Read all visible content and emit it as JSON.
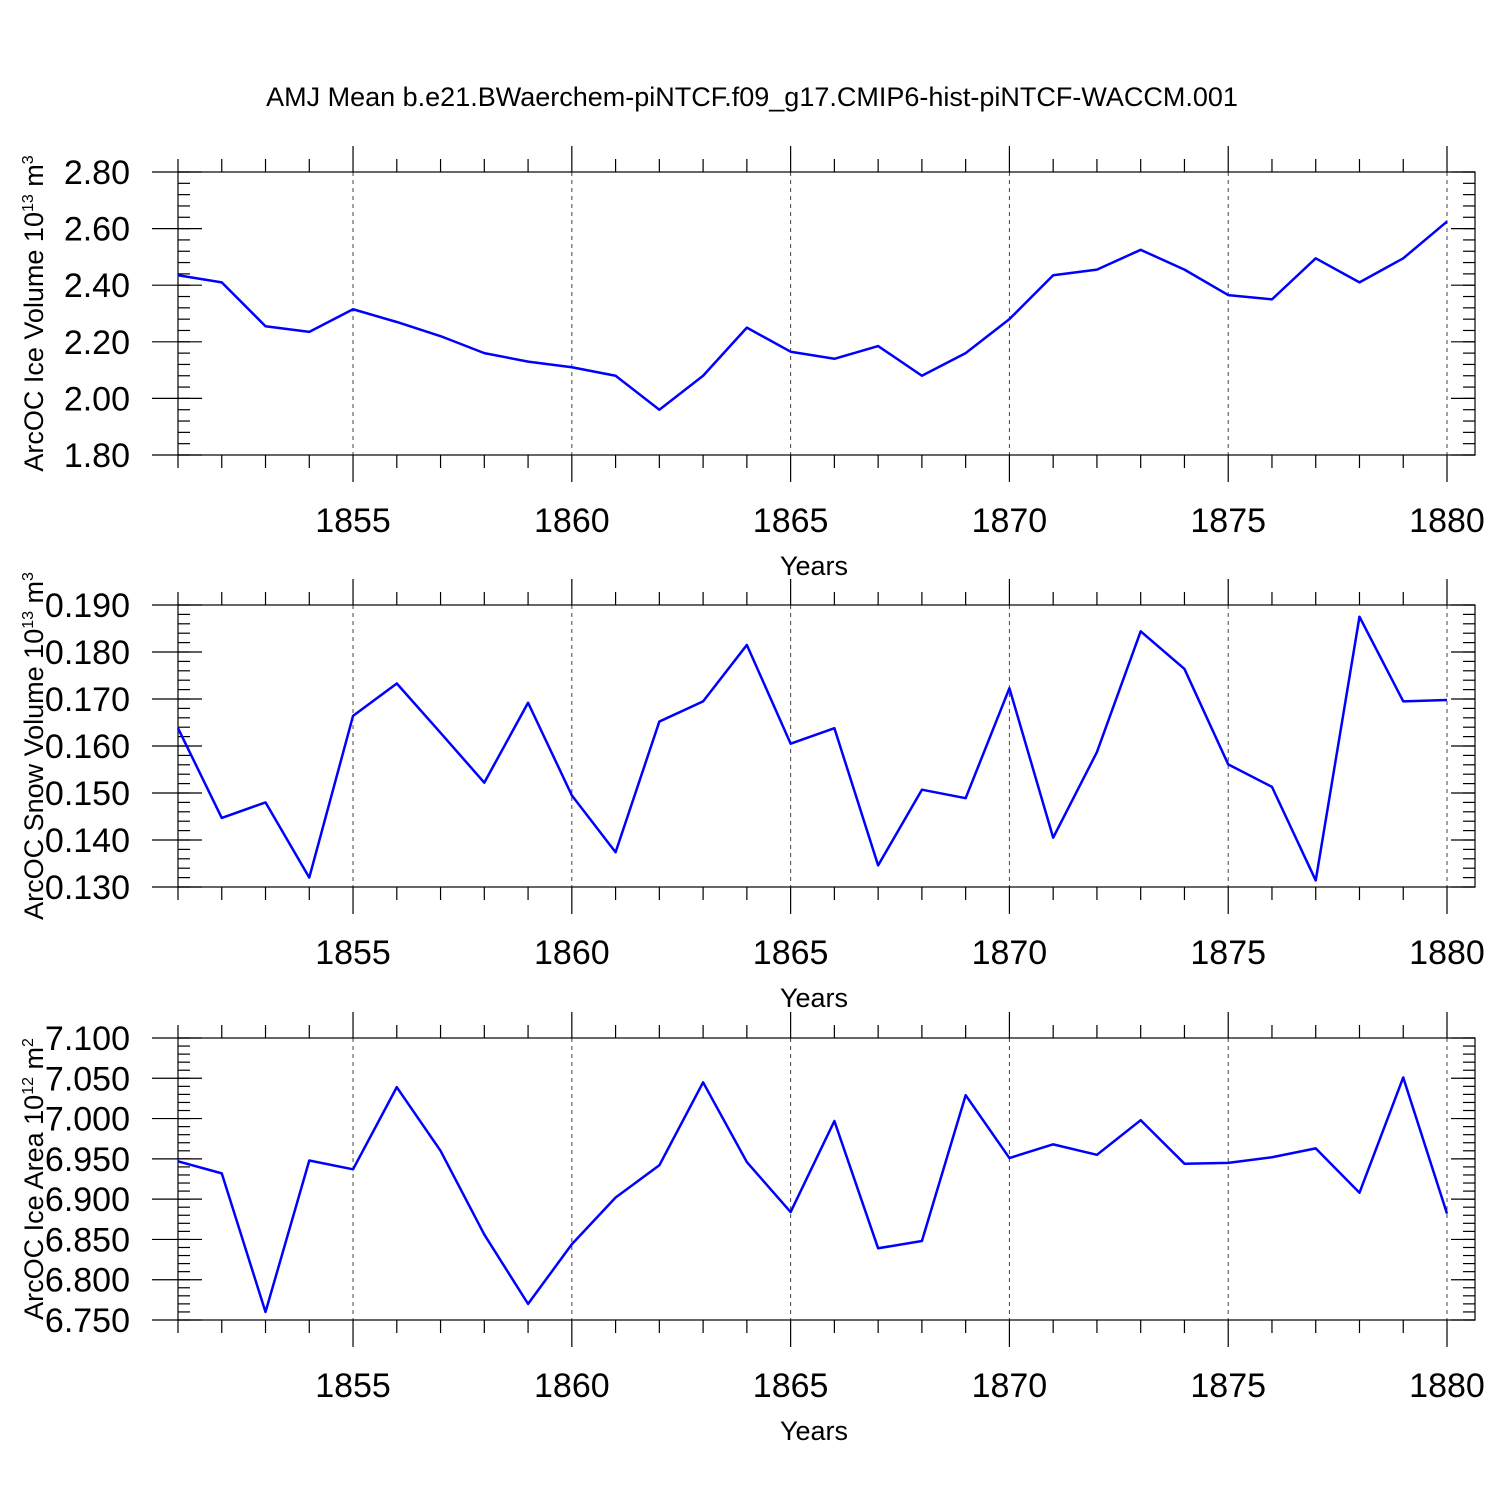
{
  "figure": {
    "title": "AMJ Mean b.e21.BWaerchem-piNTCF.f09_g17.CMIP6-hist-piNTCF-WACCM.001"
  },
  "colors": {
    "series": "#0000ff",
    "axes": "#000000",
    "grid": "#444444"
  },
  "chart_data": [
    {
      "type": "line",
      "ylabel": {
        "text": "ArcOC Ice Volume 10",
        "exp": "13",
        "unit": " m",
        "unit_exp": "3"
      },
      "xlabel": "Years",
      "xlim": [
        1851,
        1880
      ],
      "ylim": [
        1.8,
        2.8
      ],
      "xticks": [
        1855,
        1860,
        1865,
        1870,
        1875,
        1880
      ],
      "xtick_labels": [
        "1855",
        "1860",
        "1865",
        "1870",
        "1875",
        "1880"
      ],
      "yticks": [
        1.8,
        2.0,
        2.2,
        2.4,
        2.6,
        2.8
      ],
      "ytick_labels": [
        "1.80",
        "2.00",
        "2.20",
        "2.40",
        "2.60",
        "2.80"
      ],
      "y_minor_step": 0.04,
      "grid": "vertical dashed at major x ticks",
      "x": [
        1851,
        1852,
        1853,
        1854,
        1855,
        1856,
        1857,
        1858,
        1859,
        1860,
        1861,
        1862,
        1863,
        1864,
        1865,
        1866,
        1867,
        1868,
        1869,
        1870,
        1871,
        1872,
        1873,
        1874,
        1875,
        1876,
        1877,
        1878,
        1879,
        1880
      ],
      "y": [
        2.435,
        2.41,
        2.255,
        2.235,
        2.315,
        2.27,
        2.22,
        2.16,
        2.13,
        2.11,
        2.08,
        1.96,
        2.08,
        2.25,
        2.165,
        2.14,
        2.185,
        2.08,
        2.16,
        2.28,
        2.435,
        2.455,
        2.525,
        2.455,
        2.365,
        2.35,
        2.495,
        2.41,
        2.495,
        2.625
      ]
    },
    {
      "type": "line",
      "ylabel": {
        "text": "ArcOC Snow Volume 10",
        "exp": "13",
        "unit": " m",
        "unit_exp": "3"
      },
      "xlabel": "Years",
      "xlim": [
        1851,
        1880
      ],
      "ylim": [
        0.13,
        0.19
      ],
      "xticks": [
        1855,
        1860,
        1865,
        1870,
        1875,
        1880
      ],
      "xtick_labels": [
        "1855",
        "1860",
        "1865",
        "1870",
        "1875",
        "1880"
      ],
      "yticks": [
        0.13,
        0.14,
        0.15,
        0.16,
        0.17,
        0.18,
        0.19
      ],
      "ytick_labels": [
        "0.130",
        "0.140",
        "0.150",
        "0.160",
        "0.170",
        "0.180",
        "0.190"
      ],
      "y_minor_step": 0.002,
      "grid": "vertical dashed at major x ticks",
      "x": [
        1851,
        1852,
        1853,
        1854,
        1855,
        1856,
        1857,
        1858,
        1859,
        1860,
        1861,
        1862,
        1863,
        1864,
        1865,
        1866,
        1867,
        1868,
        1869,
        1870,
        1871,
        1872,
        1873,
        1874,
        1875,
        1876,
        1877,
        1878,
        1879,
        1880
      ],
      "y": [
        0.1638,
        0.1447,
        0.148,
        0.132,
        0.1664,
        0.1733,
        0.1628,
        0.1522,
        0.1692,
        0.1495,
        0.1374,
        0.1652,
        0.1695,
        0.1815,
        0.1605,
        0.1638,
        0.1346,
        0.1507,
        0.1489,
        0.1723,
        0.1405,
        0.1587,
        0.1844,
        0.1764,
        0.1561,
        0.1513,
        0.1314,
        0.1875,
        0.1695,
        0.1698
      ]
    },
    {
      "type": "line",
      "ylabel": {
        "text": "ArcOC Ice Area 10",
        "exp": "12",
        "unit": " m",
        "unit_exp": "2"
      },
      "xlabel": "Years",
      "xlim": [
        1851,
        1880
      ],
      "ylim": [
        6.75,
        7.1
      ],
      "xticks": [
        1855,
        1860,
        1865,
        1870,
        1875,
        1880
      ],
      "xtick_labels": [
        "1855",
        "1860",
        "1865",
        "1870",
        "1875",
        "1880"
      ],
      "yticks": [
        6.75,
        6.8,
        6.85,
        6.9,
        6.95,
        7.0,
        7.05,
        7.1
      ],
      "ytick_labels": [
        "6.750",
        "6.800",
        "6.850",
        "6.900",
        "6.950",
        "7.000",
        "7.050",
        "7.100"
      ],
      "y_minor_step": 0.01,
      "grid": "vertical dashed at major x ticks",
      "x": [
        1851,
        1852,
        1853,
        1854,
        1855,
        1856,
        1857,
        1858,
        1859,
        1860,
        1861,
        1862,
        1863,
        1864,
        1865,
        1866,
        1867,
        1868,
        1869,
        1870,
        1871,
        1872,
        1873,
        1874,
        1875,
        1876,
        1877,
        1878,
        1879,
        1880
      ],
      "y": [
        6.947,
        6.932,
        6.76,
        6.948,
        6.937,
        7.039,
        6.96,
        6.856,
        6.77,
        6.844,
        6.902,
        6.942,
        7.045,
        6.946,
        6.884,
        6.997,
        6.839,
        6.848,
        7.029,
        6.951,
        6.968,
        6.955,
        6.998,
        6.944,
        6.945,
        6.952,
        6.963,
        6.908,
        7.051,
        6.882
      ]
    }
  ]
}
